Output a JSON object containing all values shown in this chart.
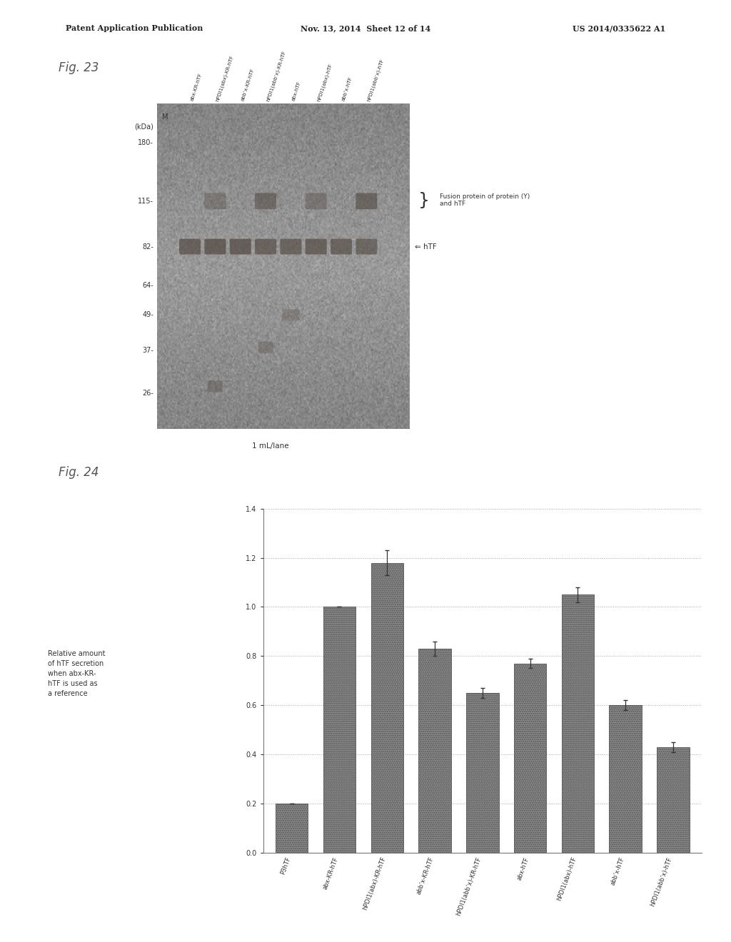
{
  "page_header_left": "Patent Application Publication",
  "page_header_mid": "Nov. 13, 2014  Sheet 12 of 14",
  "page_header_right": "US 2014/0335622 A1",
  "fig23_label": "Fig. 23",
  "fig24_label": "Fig. 24",
  "fig23_xlabel": "1 mL/lane",
  "fig23_kda_label": "(kDa)",
  "fig23_marker_label": "M",
  "fig23_kda_values": [
    180,
    115,
    82,
    64,
    49,
    37,
    26
  ],
  "fig23_kda_y": {
    "180": 0.88,
    "115": 0.7,
    "82": 0.56,
    "64": 0.44,
    "49": 0.35,
    "37": 0.24,
    "26": 0.11
  },
  "fig23_lane_labels": [
    "abx-KR-hTF",
    "hPDI1(abx)-KR-hTF",
    "abb’x-KR-hTF",
    "hPDI1(abb’x)-KR-hTF",
    "abx-hTF",
    "hPDI1(abx)-hTF",
    "abb’x-hTF",
    "hPDI1(abb’x)-hTF"
  ],
  "fig23_annotation1": "Fusion protein of protein (Y)\nand hTF",
  "fig23_annotation2": "⇐ hTF",
  "fig24_categories": [
    "P3hTF",
    "abx-KR-hTF",
    "hPDI1(abx)-KR-hTF",
    "abb’x-KR-hTF",
    "hPDI1(abb’x)-KR-hTF",
    "abx-hTF",
    "hPDI1(abx)-hTF",
    "abb’x-hTF",
    "hPDI1(abb’x)-hTF"
  ],
  "fig24_values": [
    0.2,
    1.0,
    1.18,
    0.83,
    0.65,
    0.77,
    1.05,
    0.6,
    0.43
  ],
  "fig24_error": [
    0.0,
    0.0,
    0.05,
    0.03,
    0.02,
    0.02,
    0.03,
    0.02,
    0.02
  ],
  "fig24_ylabel": "Relative amount\nof hTF secretion\nwhen abx-KR-\nhTF is used as\na reference",
  "fig24_ylim": [
    0,
    1.4
  ],
  "fig24_yticks": [
    0,
    0.2,
    0.4,
    0.6,
    0.8,
    1.0,
    1.2,
    1.4
  ],
  "bar_color": "#8a8a8a",
  "background_color": "#ffffff",
  "grid_color": "#cccccc",
  "gel_bg_color": "#d5d0c8",
  "gel_band_color": "#6a6055"
}
